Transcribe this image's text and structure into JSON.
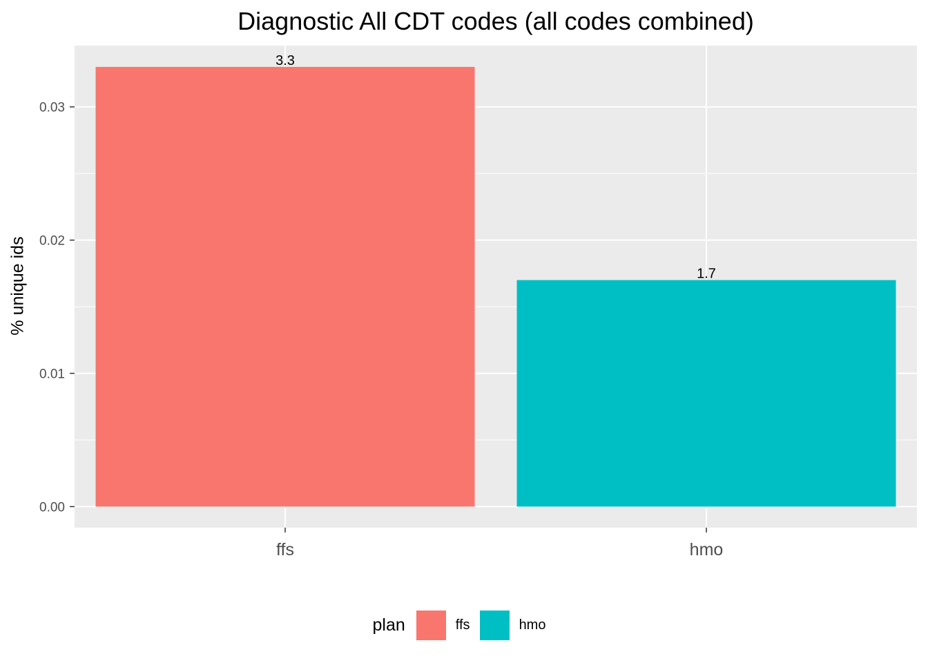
{
  "chart_data": {
    "type": "bar",
    "title": "Diagnostic All CDT codes (all codes combined)",
    "xlabel": "",
    "ylabel": "% unique ids",
    "categories": [
      "ffs",
      "hmo"
    ],
    "values": [
      0.033,
      0.017
    ],
    "data_labels": [
      "3.3",
      "1.7"
    ],
    "colors": [
      "#F8766D",
      "#00BFC4"
    ],
    "ylim": [
      -0.00158,
      0.0346
    ],
    "yticks": [
      0.0,
      0.01,
      0.02,
      0.03
    ],
    "ytick_labels": [
      "0.00",
      "0.01",
      "0.02",
      "0.03"
    ],
    "grid": true,
    "legend": {
      "title": "plan",
      "placement": "bottom",
      "entries": [
        {
          "label": "ffs",
          "color": "#F8766D"
        },
        {
          "label": "hmo",
          "color": "#00BFC4"
        }
      ]
    }
  }
}
